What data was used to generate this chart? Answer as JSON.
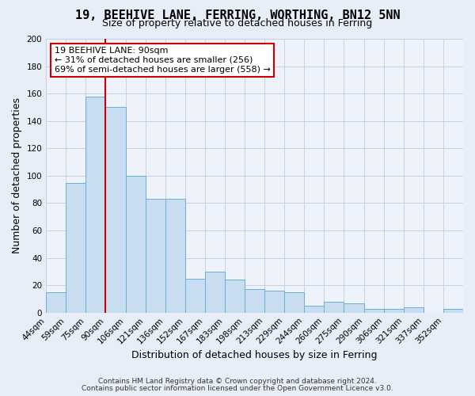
{
  "title": "19, BEEHIVE LANE, FERRING, WORTHING, BN12 5NN",
  "subtitle": "Size of property relative to detached houses in Ferring",
  "xlabel": "Distribution of detached houses by size in Ferring",
  "ylabel": "Number of detached properties",
  "categories": [
    "44sqm",
    "59sqm",
    "75sqm",
    "90sqm",
    "106sqm",
    "121sqm",
    "136sqm",
    "152sqm",
    "167sqm",
    "183sqm",
    "198sqm",
    "213sqm",
    "229sqm",
    "244sqm",
    "260sqm",
    "275sqm",
    "290sqm",
    "306sqm",
    "321sqm",
    "337sqm",
    "352sqm"
  ],
  "values": [
    15,
    95,
    158,
    150,
    100,
    83,
    83,
    25,
    30,
    24,
    17,
    16,
    15,
    5,
    8,
    7,
    3,
    3,
    4,
    0,
    3
  ],
  "bar_color": "#c9ddf0",
  "bar_edge_color": "#6aaed6",
  "vline_x": 3,
  "vline_color": "#cc0000",
  "ylim": [
    0,
    200
  ],
  "yticks": [
    0,
    20,
    40,
    60,
    80,
    100,
    120,
    140,
    160,
    180,
    200
  ],
  "annotation_title": "19 BEEHIVE LANE: 90sqm",
  "annotation_line1": "← 31% of detached houses are smaller (256)",
  "annotation_line2": "69% of semi-detached houses are larger (558) →",
  "annotation_box_color": "#ffffff",
  "annotation_box_edge": "#cc0000",
  "footer1": "Contains HM Land Registry data © Crown copyright and database right 2024.",
  "footer2": "Contains public sector information licensed under the Open Government Licence v3.0.",
  "bg_color": "#e8eef8",
  "plot_bg_color": "#eef2fb",
  "grid_color": "#c8d0e0",
  "title_fontsize": 11,
  "subtitle_fontsize": 9,
  "axis_label_fontsize": 9,
  "tick_fontsize": 7.5,
  "annotation_fontsize": 8,
  "footer_fontsize": 6.5
}
